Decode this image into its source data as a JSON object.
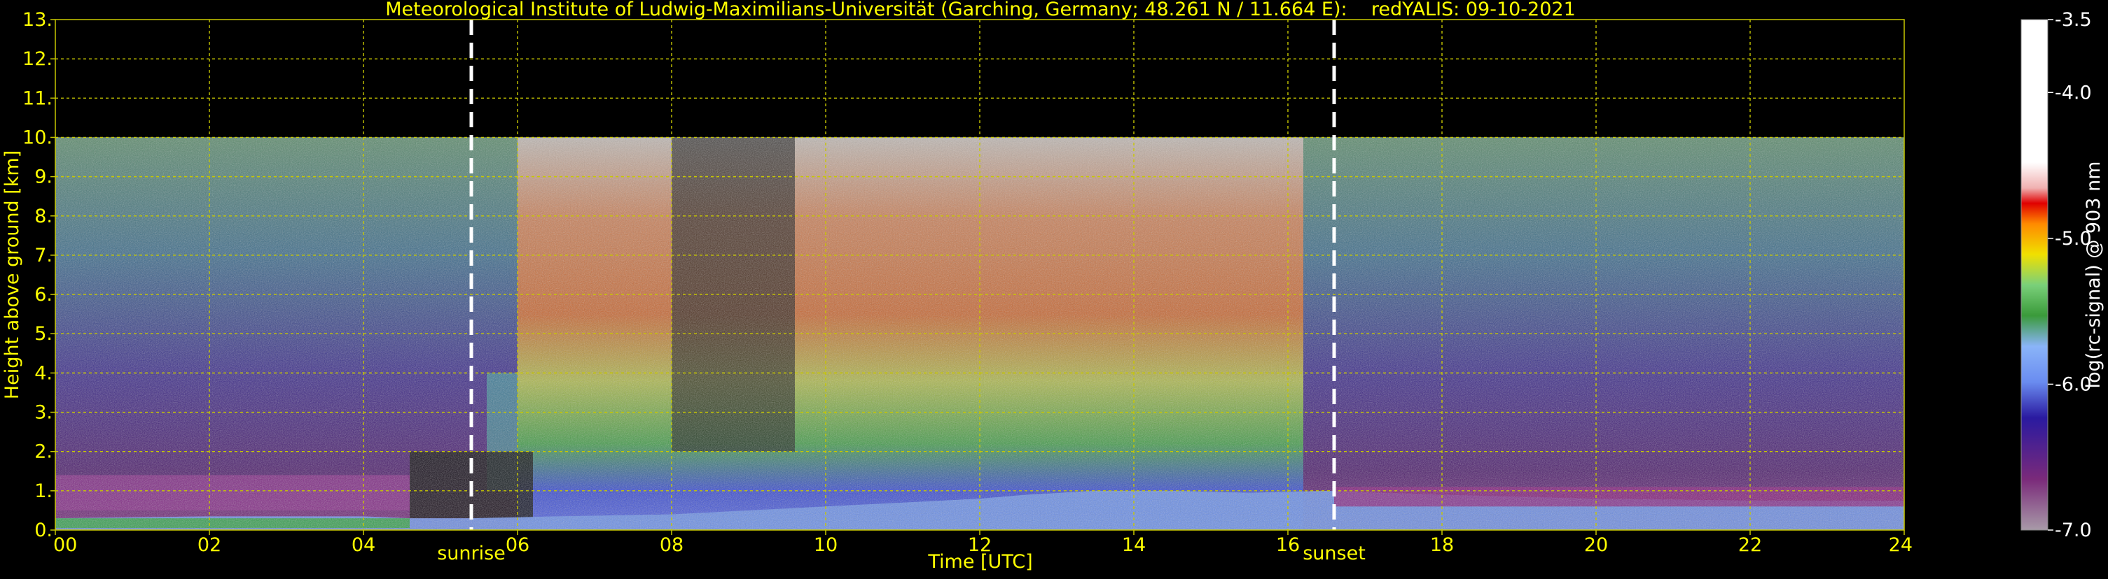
{
  "chart_data": {
    "type": "heatmap",
    "title": "Meteorological Institute of Ludwig-Maximilians-Universität (Garching, Germany; 48.261 N / 11.664 E):    redYALIS: 09-10-2021",
    "xlabel": "Time [UTC]",
    "ylabel": "Height above ground [km]",
    "xlim": [
      0,
      24
    ],
    "ylim": [
      0,
      13
    ],
    "x_ticks": [
      "00",
      "02",
      "04",
      "06",
      "08",
      "10",
      "12",
      "14",
      "16",
      "18",
      "20",
      "22",
      "24"
    ],
    "x_tick_values": [
      0,
      2,
      4,
      6,
      8,
      10,
      12,
      14,
      16,
      18,
      20,
      22,
      24
    ],
    "y_ticks": [
      "0.",
      "1.",
      "2.",
      "3.",
      "4.",
      "5.",
      "6.",
      "7.",
      "8.",
      "9.",
      "10.",
      "11.",
      "12.",
      "13."
    ],
    "y_tick_values": [
      0,
      1,
      2,
      3,
      4,
      5,
      6,
      7,
      8,
      9,
      10,
      11,
      12,
      13
    ],
    "grid": true,
    "data_top_km": 10,
    "markers": [
      {
        "label": "sunrise",
        "time": 5.4
      },
      {
        "label": "sunset",
        "time": 16.6
      }
    ],
    "colorbar": {
      "label": "log(rc-signal) @ 903 nm",
      "range": [
        -7.0,
        -3.5
      ],
      "ticks": [
        "-3.5",
        "-4.0",
        "-5.0",
        "-6.0",
        "-7.0"
      ],
      "tick_values": [
        -3.5,
        -4.0,
        -5.0,
        -6.0,
        -7.0
      ]
    },
    "boundary_layer_top_km": [
      [
        0,
        0.3
      ],
      [
        2,
        0.35
      ],
      [
        4,
        0.35
      ],
      [
        4.6,
        0.3
      ],
      [
        5.4,
        0.3
      ],
      [
        6.5,
        0.35
      ],
      [
        8,
        0.4
      ],
      [
        9,
        0.5
      ],
      [
        10,
        0.6
      ],
      [
        11,
        0.7
      ],
      [
        12,
        0.8
      ],
      [
        12.6,
        0.9
      ],
      [
        13.5,
        1.0
      ],
      [
        14.5,
        1.0
      ],
      [
        15.5,
        0.95
      ],
      [
        16.5,
        1.0
      ],
      [
        18,
        0.9
      ],
      [
        20,
        0.8
      ],
      [
        22,
        0.75
      ],
      [
        24,
        0.75
      ]
    ]
  },
  "colors": {
    "text": "#ffff00",
    "grid": "#c8c800",
    "marker": "#ffffff",
    "background": "#000000"
  }
}
